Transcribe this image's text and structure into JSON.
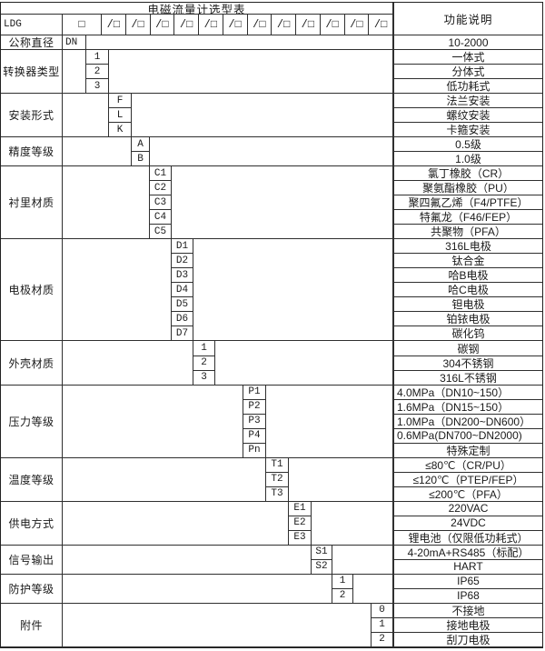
{
  "title": "电磁流量计选型表",
  "function_header": "功能说明",
  "model_code": {
    "prefix": "LDG",
    "first_box": "□",
    "slash_box": "/□"
  },
  "colors": {
    "border": "#2f2f2f",
    "text": "#1a1a1a",
    "background": "#ffffff"
  },
  "groups": [
    {
      "label": "公称直径",
      "codes": [
        {
          "code": "DN",
          "desc": "10-2000"
        }
      ]
    },
    {
      "label": "转换器类型",
      "codes": [
        {
          "code": "1",
          "desc": "一体式"
        },
        {
          "code": "2",
          "desc": "分体式"
        },
        {
          "code": "3",
          "desc": "低功耗式"
        }
      ]
    },
    {
      "label": "安装形式",
      "codes": [
        {
          "code": "F",
          "desc": "法兰安装"
        },
        {
          "code": "L",
          "desc": "螺纹安装"
        },
        {
          "code": "K",
          "desc": "卡箍安装"
        }
      ]
    },
    {
      "label": "精度等级",
      "codes": [
        {
          "code": "A",
          "desc": "0.5级"
        },
        {
          "code": "B",
          "desc": "1.0级"
        }
      ]
    },
    {
      "label": "衬里材质",
      "codes": [
        {
          "code": "C1",
          "desc": "氯丁橡胶（CR）"
        },
        {
          "code": "C2",
          "desc": "聚氨酯橡胶（PU）"
        },
        {
          "code": "C3",
          "desc": "聚四氟乙烯（F4/PTFE）"
        },
        {
          "code": "C4",
          "desc": "特氟龙（F46/FEP）"
        },
        {
          "code": "C5",
          "desc": "共聚物（PFA）"
        }
      ]
    },
    {
      "label": "电极材质",
      "codes": [
        {
          "code": "D1",
          "desc": "316L电极"
        },
        {
          "code": "D2",
          "desc": "钛合金"
        },
        {
          "code": "D3",
          "desc": "哈B电极"
        },
        {
          "code": "D4",
          "desc": "哈C电极"
        },
        {
          "code": "D5",
          "desc": "钽电极"
        },
        {
          "code": "D6",
          "desc": "铂铱电极"
        },
        {
          "code": "D7",
          "desc": "碳化钨"
        }
      ]
    },
    {
      "label": "外壳材质",
      "codes": [
        {
          "code": "1",
          "desc": "碳钢"
        },
        {
          "code": "2",
          "desc": "304不锈钢"
        },
        {
          "code": "3",
          "desc": "316L不锈钢"
        }
      ]
    },
    {
      "label": "压力等级",
      "codes": [
        {
          "code": "P1",
          "desc": "4.0MPa（DN10~150）"
        },
        {
          "code": "P2",
          "desc": "1.6MPa（DN15~150）"
        },
        {
          "code": "P3",
          "desc": "1.0MPa（DN200~DN600）"
        },
        {
          "code": "P4",
          "desc": "0.6MPa(DN700~DN2000)"
        },
        {
          "code": "Pn",
          "desc": "特殊定制"
        }
      ]
    },
    {
      "label": "温度等级",
      "codes": [
        {
          "code": "T1",
          "desc": "≤80℃（CR/PU）"
        },
        {
          "code": "T2",
          "desc": "≤120℃（PTEP/FEP）"
        },
        {
          "code": "T3",
          "desc": "≤200℃（PFA）"
        }
      ]
    },
    {
      "label": "供电方式",
      "codes": [
        {
          "code": "E1",
          "desc": "220VAC"
        },
        {
          "code": "E2",
          "desc": "24VDC"
        },
        {
          "code": "E3",
          "desc": "锂电池（仅限低功耗式）"
        }
      ]
    },
    {
      "label": "信号输出",
      "codes": [
        {
          "code": "S1",
          "desc": "4-20mA+RS485（标配）"
        },
        {
          "code": "S2",
          "desc": "HART"
        }
      ]
    },
    {
      "label": "防护等级",
      "codes": [
        {
          "code": "1",
          "desc": "IP65"
        },
        {
          "code": "2",
          "desc": "IP68"
        }
      ]
    },
    {
      "label": "附件",
      "codes": [
        {
          "code": "0",
          "desc": "不接地"
        },
        {
          "code": "1",
          "desc": "接地电极"
        },
        {
          "code": "2",
          "desc": "刮刀电极"
        }
      ]
    }
  ]
}
